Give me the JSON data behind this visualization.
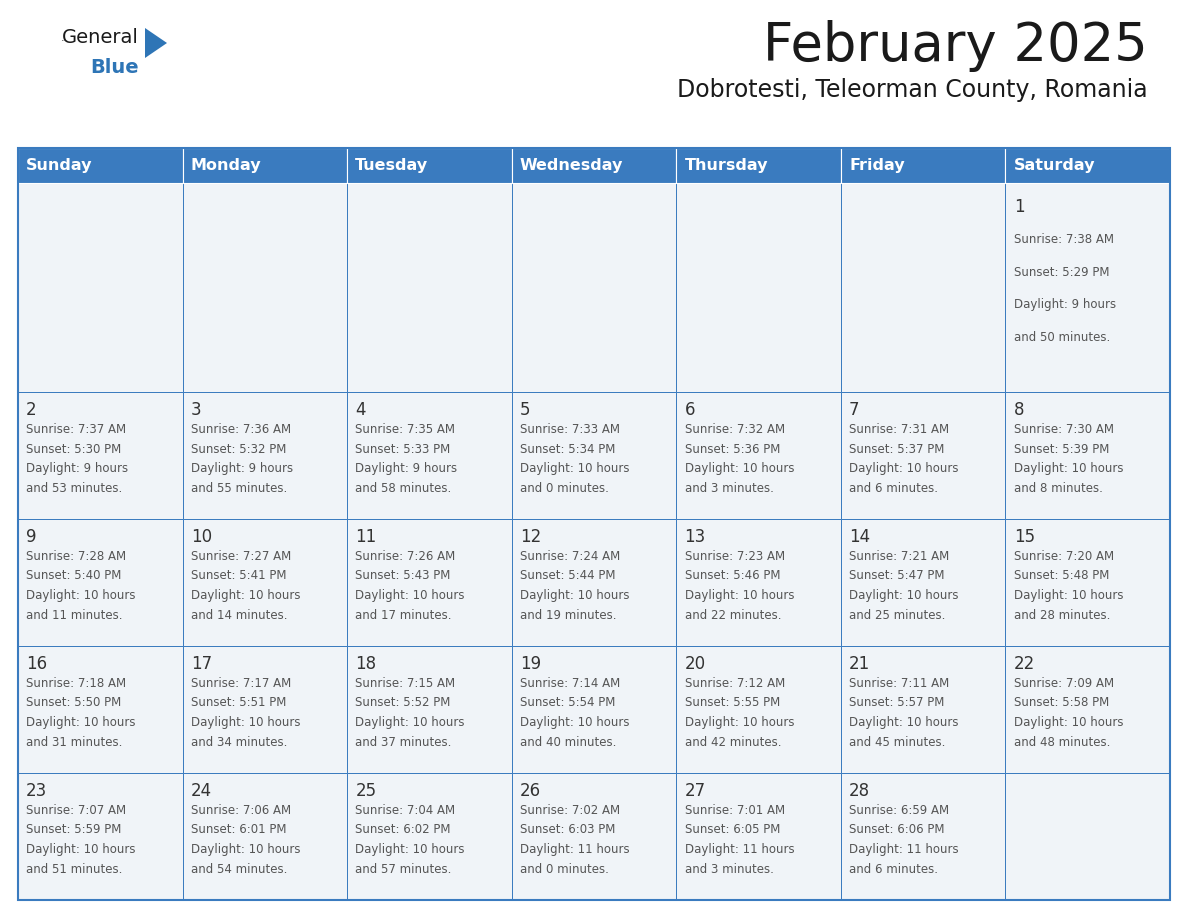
{
  "title": "February 2025",
  "subtitle": "Dobrotesti, Teleorman County, Romania",
  "days_of_week": [
    "Sunday",
    "Monday",
    "Tuesday",
    "Wednesday",
    "Thursday",
    "Friday",
    "Saturday"
  ],
  "header_bg": "#3A7BBF",
  "header_text": "#FFFFFF",
  "cell_bg_odd": "#F0F4F8",
  "cell_bg_even": "#FFFFFF",
  "border_color": "#3A7BBF",
  "title_color": "#1a1a1a",
  "subtitle_color": "#1a1a1a",
  "day_number_color": "#333333",
  "cell_text_color": "#555555",
  "logo_triangle_color": "#2E75B6",
  "logo_general_color": "#1a1a1a",
  "logo_blue_color": "#2E75B6",
  "calendar_data": [
    [
      null,
      null,
      null,
      null,
      null,
      null,
      {
        "day": 1,
        "sunrise": "7:38 AM",
        "sunset": "5:29 PM",
        "daylight": "9 hours and 50 minutes."
      }
    ],
    [
      {
        "day": 2,
        "sunrise": "7:37 AM",
        "sunset": "5:30 PM",
        "daylight": "9 hours and 53 minutes."
      },
      {
        "day": 3,
        "sunrise": "7:36 AM",
        "sunset": "5:32 PM",
        "daylight": "9 hours and 55 minutes."
      },
      {
        "day": 4,
        "sunrise": "7:35 AM",
        "sunset": "5:33 PM",
        "daylight": "9 hours and 58 minutes."
      },
      {
        "day": 5,
        "sunrise": "7:33 AM",
        "sunset": "5:34 PM",
        "daylight": "10 hours and 0 minutes."
      },
      {
        "day": 6,
        "sunrise": "7:32 AM",
        "sunset": "5:36 PM",
        "daylight": "10 hours and 3 minutes."
      },
      {
        "day": 7,
        "sunrise": "7:31 AM",
        "sunset": "5:37 PM",
        "daylight": "10 hours and 6 minutes."
      },
      {
        "day": 8,
        "sunrise": "7:30 AM",
        "sunset": "5:39 PM",
        "daylight": "10 hours and 8 minutes."
      }
    ],
    [
      {
        "day": 9,
        "sunrise": "7:28 AM",
        "sunset": "5:40 PM",
        "daylight": "10 hours and 11 minutes."
      },
      {
        "day": 10,
        "sunrise": "7:27 AM",
        "sunset": "5:41 PM",
        "daylight": "10 hours and 14 minutes."
      },
      {
        "day": 11,
        "sunrise": "7:26 AM",
        "sunset": "5:43 PM",
        "daylight": "10 hours and 17 minutes."
      },
      {
        "day": 12,
        "sunrise": "7:24 AM",
        "sunset": "5:44 PM",
        "daylight": "10 hours and 19 minutes."
      },
      {
        "day": 13,
        "sunrise": "7:23 AM",
        "sunset": "5:46 PM",
        "daylight": "10 hours and 22 minutes."
      },
      {
        "day": 14,
        "sunrise": "7:21 AM",
        "sunset": "5:47 PM",
        "daylight": "10 hours and 25 minutes."
      },
      {
        "day": 15,
        "sunrise": "7:20 AM",
        "sunset": "5:48 PM",
        "daylight": "10 hours and 28 minutes."
      }
    ],
    [
      {
        "day": 16,
        "sunrise": "7:18 AM",
        "sunset": "5:50 PM",
        "daylight": "10 hours and 31 minutes."
      },
      {
        "day": 17,
        "sunrise": "7:17 AM",
        "sunset": "5:51 PM",
        "daylight": "10 hours and 34 minutes."
      },
      {
        "day": 18,
        "sunrise": "7:15 AM",
        "sunset": "5:52 PM",
        "daylight": "10 hours and 37 minutes."
      },
      {
        "day": 19,
        "sunrise": "7:14 AM",
        "sunset": "5:54 PM",
        "daylight": "10 hours and 40 minutes."
      },
      {
        "day": 20,
        "sunrise": "7:12 AM",
        "sunset": "5:55 PM",
        "daylight": "10 hours and 42 minutes."
      },
      {
        "day": 21,
        "sunrise": "7:11 AM",
        "sunset": "5:57 PM",
        "daylight": "10 hours and 45 minutes."
      },
      {
        "day": 22,
        "sunrise": "7:09 AM",
        "sunset": "5:58 PM",
        "daylight": "10 hours and 48 minutes."
      }
    ],
    [
      {
        "day": 23,
        "sunrise": "7:07 AM",
        "sunset": "5:59 PM",
        "daylight": "10 hours and 51 minutes."
      },
      {
        "day": 24,
        "sunrise": "7:06 AM",
        "sunset": "6:01 PM",
        "daylight": "10 hours and 54 minutes."
      },
      {
        "day": 25,
        "sunrise": "7:04 AM",
        "sunset": "6:02 PM",
        "daylight": "10 hours and 57 minutes."
      },
      {
        "day": 26,
        "sunrise": "7:02 AM",
        "sunset": "6:03 PM",
        "daylight": "11 hours and 0 minutes."
      },
      {
        "day": 27,
        "sunrise": "7:01 AM",
        "sunset": "6:05 PM",
        "daylight": "11 hours and 3 minutes."
      },
      {
        "day": 28,
        "sunrise": "6:59 AM",
        "sunset": "6:06 PM",
        "daylight": "11 hours and 6 minutes."
      },
      null
    ]
  ]
}
